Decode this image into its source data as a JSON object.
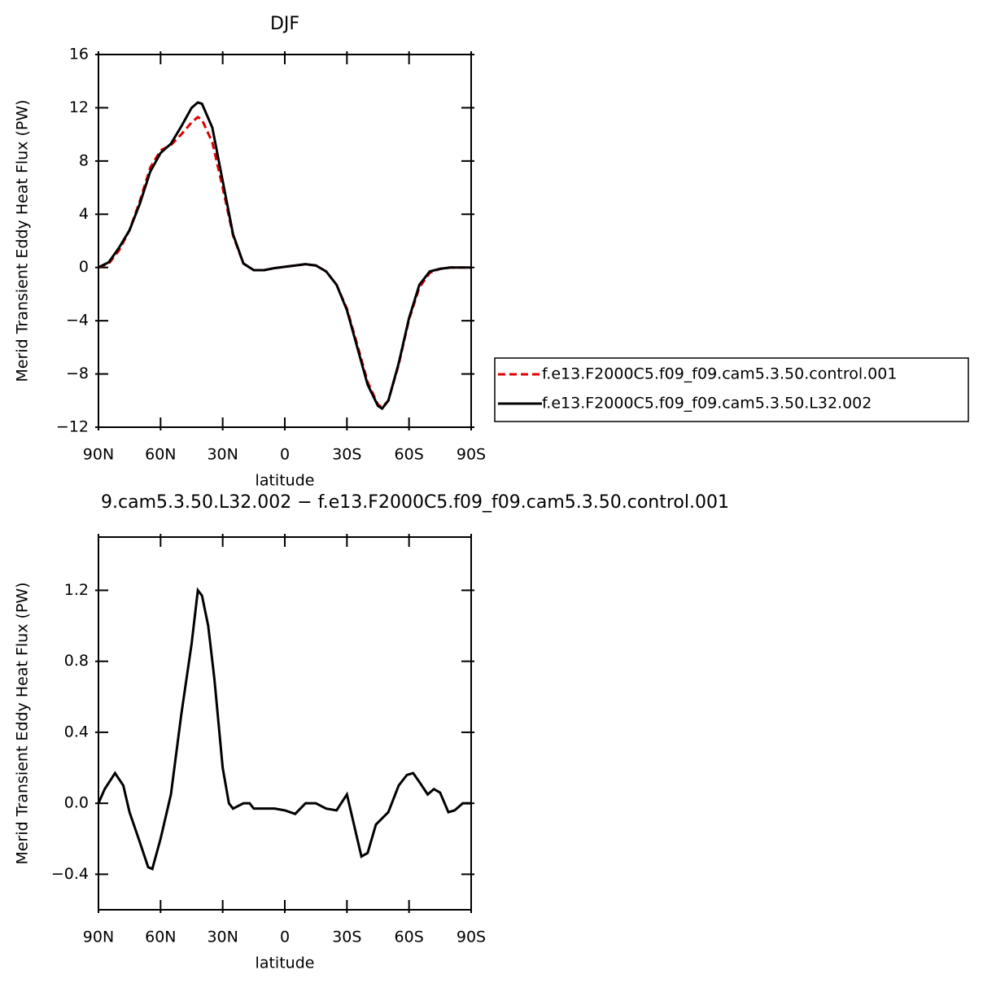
{
  "chart_data": [
    {
      "type": "line",
      "title": "DJF",
      "x_label": "latitude",
      "y_label": "Merid Transient Eddy Heat Flux (PW)",
      "x": [
        90,
        85,
        80,
        75,
        70,
        65,
        60,
        55,
        50,
        45,
        42,
        40,
        35,
        30,
        25,
        20,
        15,
        10,
        5,
        0,
        -5,
        -10,
        -15,
        -20,
        -25,
        -30,
        -35,
        -40,
        -45,
        -47,
        -50,
        -55,
        -60,
        -65,
        -70,
        -75,
        -80,
        -85,
        -90
      ],
      "xlim": [
        90,
        -90
      ],
      "xticks": [
        {
          "value": 90,
          "label": "90N"
        },
        {
          "value": 60,
          "label": "60N"
        },
        {
          "value": 30,
          "label": "30N"
        },
        0,
        {
          "value": -30,
          "label": "30S"
        },
        {
          "value": -60,
          "label": "60S"
        },
        {
          "value": -90,
          "label": "90S"
        }
      ],
      "ylim": [
        -12,
        16
      ],
      "yticks": [
        {
          "value": -12,
          "label": "−12"
        },
        {
          "value": -8,
          "label": "−8"
        },
        {
          "value": -4,
          "label": "−4"
        },
        0,
        4,
        8,
        12,
        16
      ],
      "series": [
        {
          "name": "f.e13.F2000C5.f09_f09.cam5.3.50.control.001",
          "color": "#e00000",
          "line_style": "dashed",
          "values": [
            0,
            0.3,
            1.3,
            2.8,
            5.0,
            7.5,
            8.8,
            9.2,
            10.0,
            10.9,
            11.3,
            11.1,
            9.4,
            6.0,
            2.4,
            0.3,
            -0.2,
            -0.2,
            -0.05,
            0.05,
            0.15,
            0.25,
            0.15,
            -0.3,
            -1.3,
            -3.1,
            -5.8,
            -8.6,
            -10.3,
            -10.5,
            -10.0,
            -7.3,
            -3.9,
            -1.5,
            -0.4,
            -0.1,
            0,
            0,
            0
          ]
        },
        {
          "name": "f.e13.F2000C5.f09_f09.cam5.3.50.L32.002",
          "color": "#000000",
          "line_style": "solid",
          "values": [
            0,
            0.4,
            1.5,
            2.8,
            4.8,
            7.2,
            8.6,
            9.3,
            10.6,
            12.0,
            12.4,
            12.3,
            10.5,
            6.5,
            2.5,
            0.3,
            -0.2,
            -0.2,
            -0.05,
            0.05,
            0.15,
            0.25,
            0.15,
            -0.3,
            -1.3,
            -3.2,
            -6.0,
            -8.8,
            -10.4,
            -10.6,
            -10.0,
            -7.2,
            -3.8,
            -1.3,
            -0.3,
            -0.1,
            0,
            0,
            0
          ]
        }
      ]
    },
    {
      "type": "line",
      "title": "9.cam5.3.50.L32.002 − f.e13.F2000C5.f09_f09.cam5.3.50.control.001",
      "x_label": "latitude",
      "y_label": "Merid Transient Eddy Heat Flux (PW)",
      "x": [
        90,
        87,
        82,
        78,
        75,
        70,
        66,
        64,
        60,
        55,
        50,
        45,
        42,
        40,
        37,
        34,
        30,
        27,
        25,
        20,
        17,
        15,
        10,
        5,
        0,
        -5,
        -10,
        -15,
        -20,
        -25,
        -30,
        -33,
        -37,
        -40,
        -44,
        -50,
        -55,
        -59,
        -62,
        -65,
        -69,
        -72,
        -75,
        -79,
        -82,
        -86,
        -90
      ],
      "xlim": [
        90,
        -90
      ],
      "xticks": [
        {
          "value": 90,
          "label": "90N"
        },
        {
          "value": 60,
          "label": "60N"
        },
        {
          "value": 30,
          "label": "30N"
        },
        0,
        {
          "value": -30,
          "label": "30S"
        },
        {
          "value": -60,
          "label": "60S"
        },
        {
          "value": -90,
          "label": "90S"
        }
      ],
      "ylim": [
        -0.6,
        1.5
      ],
      "yticks": [
        {
          "value": -0.4,
          "label": "−0.4"
        },
        {
          "value": 0,
          "label": "0.0"
        },
        0.4,
        0.8,
        1.2
      ],
      "series": [
        {
          "color": "#000000",
          "line_style": "solid",
          "values": [
            0,
            0.08,
            0.17,
            0.1,
            -0.05,
            -0.22,
            -0.36,
            -0.37,
            -0.2,
            0.05,
            0.5,
            0.9,
            1.2,
            1.17,
            1.0,
            0.7,
            0.2,
            0.0,
            -0.03,
            0.0,
            0.0,
            -0.03,
            -0.03,
            -0.03,
            -0.04,
            -0.06,
            0.0,
            0.0,
            -0.03,
            -0.04,
            0.05,
            -0.1,
            -0.3,
            -0.28,
            -0.12,
            -0.05,
            0.1,
            0.16,
            0.17,
            0.12,
            0.05,
            0.08,
            0.06,
            -0.05,
            -0.04,
            0.0,
            0.0
          ]
        }
      ]
    }
  ]
}
